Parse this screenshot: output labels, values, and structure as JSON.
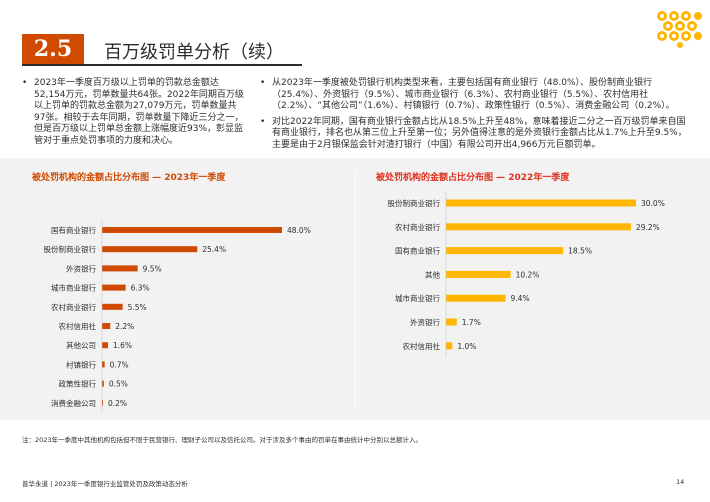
{
  "header": {
    "section_number": "2.5",
    "title": "百万级罚单分析（续）"
  },
  "colors": {
    "brand_orange": "#d04a02",
    "bar_2023": "#d04a02",
    "bar_2022": "#ffb600",
    "logo_gold": "#ffb600",
    "panel_bg": "#f2f2f2"
  },
  "left_column": {
    "bullets": [
      "2023年一季度百万级以上罚单的罚款总金额达52,154万元，罚单数量共64张。2022年同期百万级以上罚单的罚款总金额为27,079万元，罚单数量共97张。相较于去年同期，罚单数量下降近三分之一，但是百万级以上罚单总金额上涨幅度近93%，彰显监管对于重点处罚事项的力度和决心。"
    ]
  },
  "right_column": {
    "bullets": [
      "从2023年一季度被处罚银行机构类型来看，主要包括国有商业银行（48.0%）、股份制商业银行（25.4%）、外资银行（9.5%）、城市商业银行（6.3%）、农村商业银行（5.5%）、农村信用社（2.2%）、“其他公司”（1.6%）、村镇银行（0.7%）、政策性银行（0.5%）、消费金融公司（0.2%）。",
      "对比2022年同期，国有商业银行金额占比从18.5%上升至48%，意味着接近二分之一百万级罚单来自国有商业银行，排名也从第三位上升至第一位；另外值得注意的是外资银行金额占比从1.7%上升至9.5%，主要是由于2月银保监会针对渣打银行（中国）有限公司开出4,966万元巨额罚单。"
    ]
  },
  "chart_data": [
    {
      "type": "bar",
      "orientation": "horizontal",
      "title": "被处罚机构的金额占比分布图 — 2023年一季度",
      "categories": [
        "国有商业银行",
        "股份制商业银行",
        "外资银行",
        "城市商业银行",
        "农村商业银行",
        "农村信用社",
        "其他公司",
        "村镇银行",
        "政策性银行",
        "消费金融公司"
      ],
      "values": [
        48.0,
        25.4,
        9.5,
        6.3,
        5.5,
        2.2,
        1.6,
        0.7,
        0.5,
        0.2
      ],
      "labels": [
        "48.0%",
        "25.4%",
        "9.5%",
        "6.3%",
        "5.5%",
        "2.2%",
        "1.6%",
        "0.7%",
        "0.5%",
        "0.2%"
      ],
      "xlim": [
        0,
        48
      ],
      "color": "#d04a02",
      "grid": false
    },
    {
      "type": "bar",
      "orientation": "horizontal",
      "title": "被处罚机构的金额占比分布图 — 2022年一季度",
      "categories": [
        "股份制商业银行",
        "农村商业银行",
        "国有商业银行",
        "其他",
        "城市商业银行",
        "外资银行",
        "农村信用社"
      ],
      "values": [
        30.0,
        29.2,
        18.5,
        10.2,
        9.4,
        1.7,
        1.0
      ],
      "labels": [
        "30.0%",
        "29.2%",
        "18.5%",
        "10.2%",
        "9.4%",
        "1.7%",
        "1.0%"
      ],
      "xlim": [
        0,
        30
      ],
      "color": "#ffb600",
      "grid": false
    }
  ],
  "footnote": "注：2023年一季度中其他机构包括但不限于民营银行、理财子公司以及信托公司。对于涉及多个事由的罚单在事由统计中分别以总额计入。",
  "footer": {
    "text": "普华永道 | 2023年一季度银行业监管处罚及政策动态分析",
    "page_number": "14"
  },
  "logo": {
    "icon": "pwc-diamond-logo-icon"
  }
}
